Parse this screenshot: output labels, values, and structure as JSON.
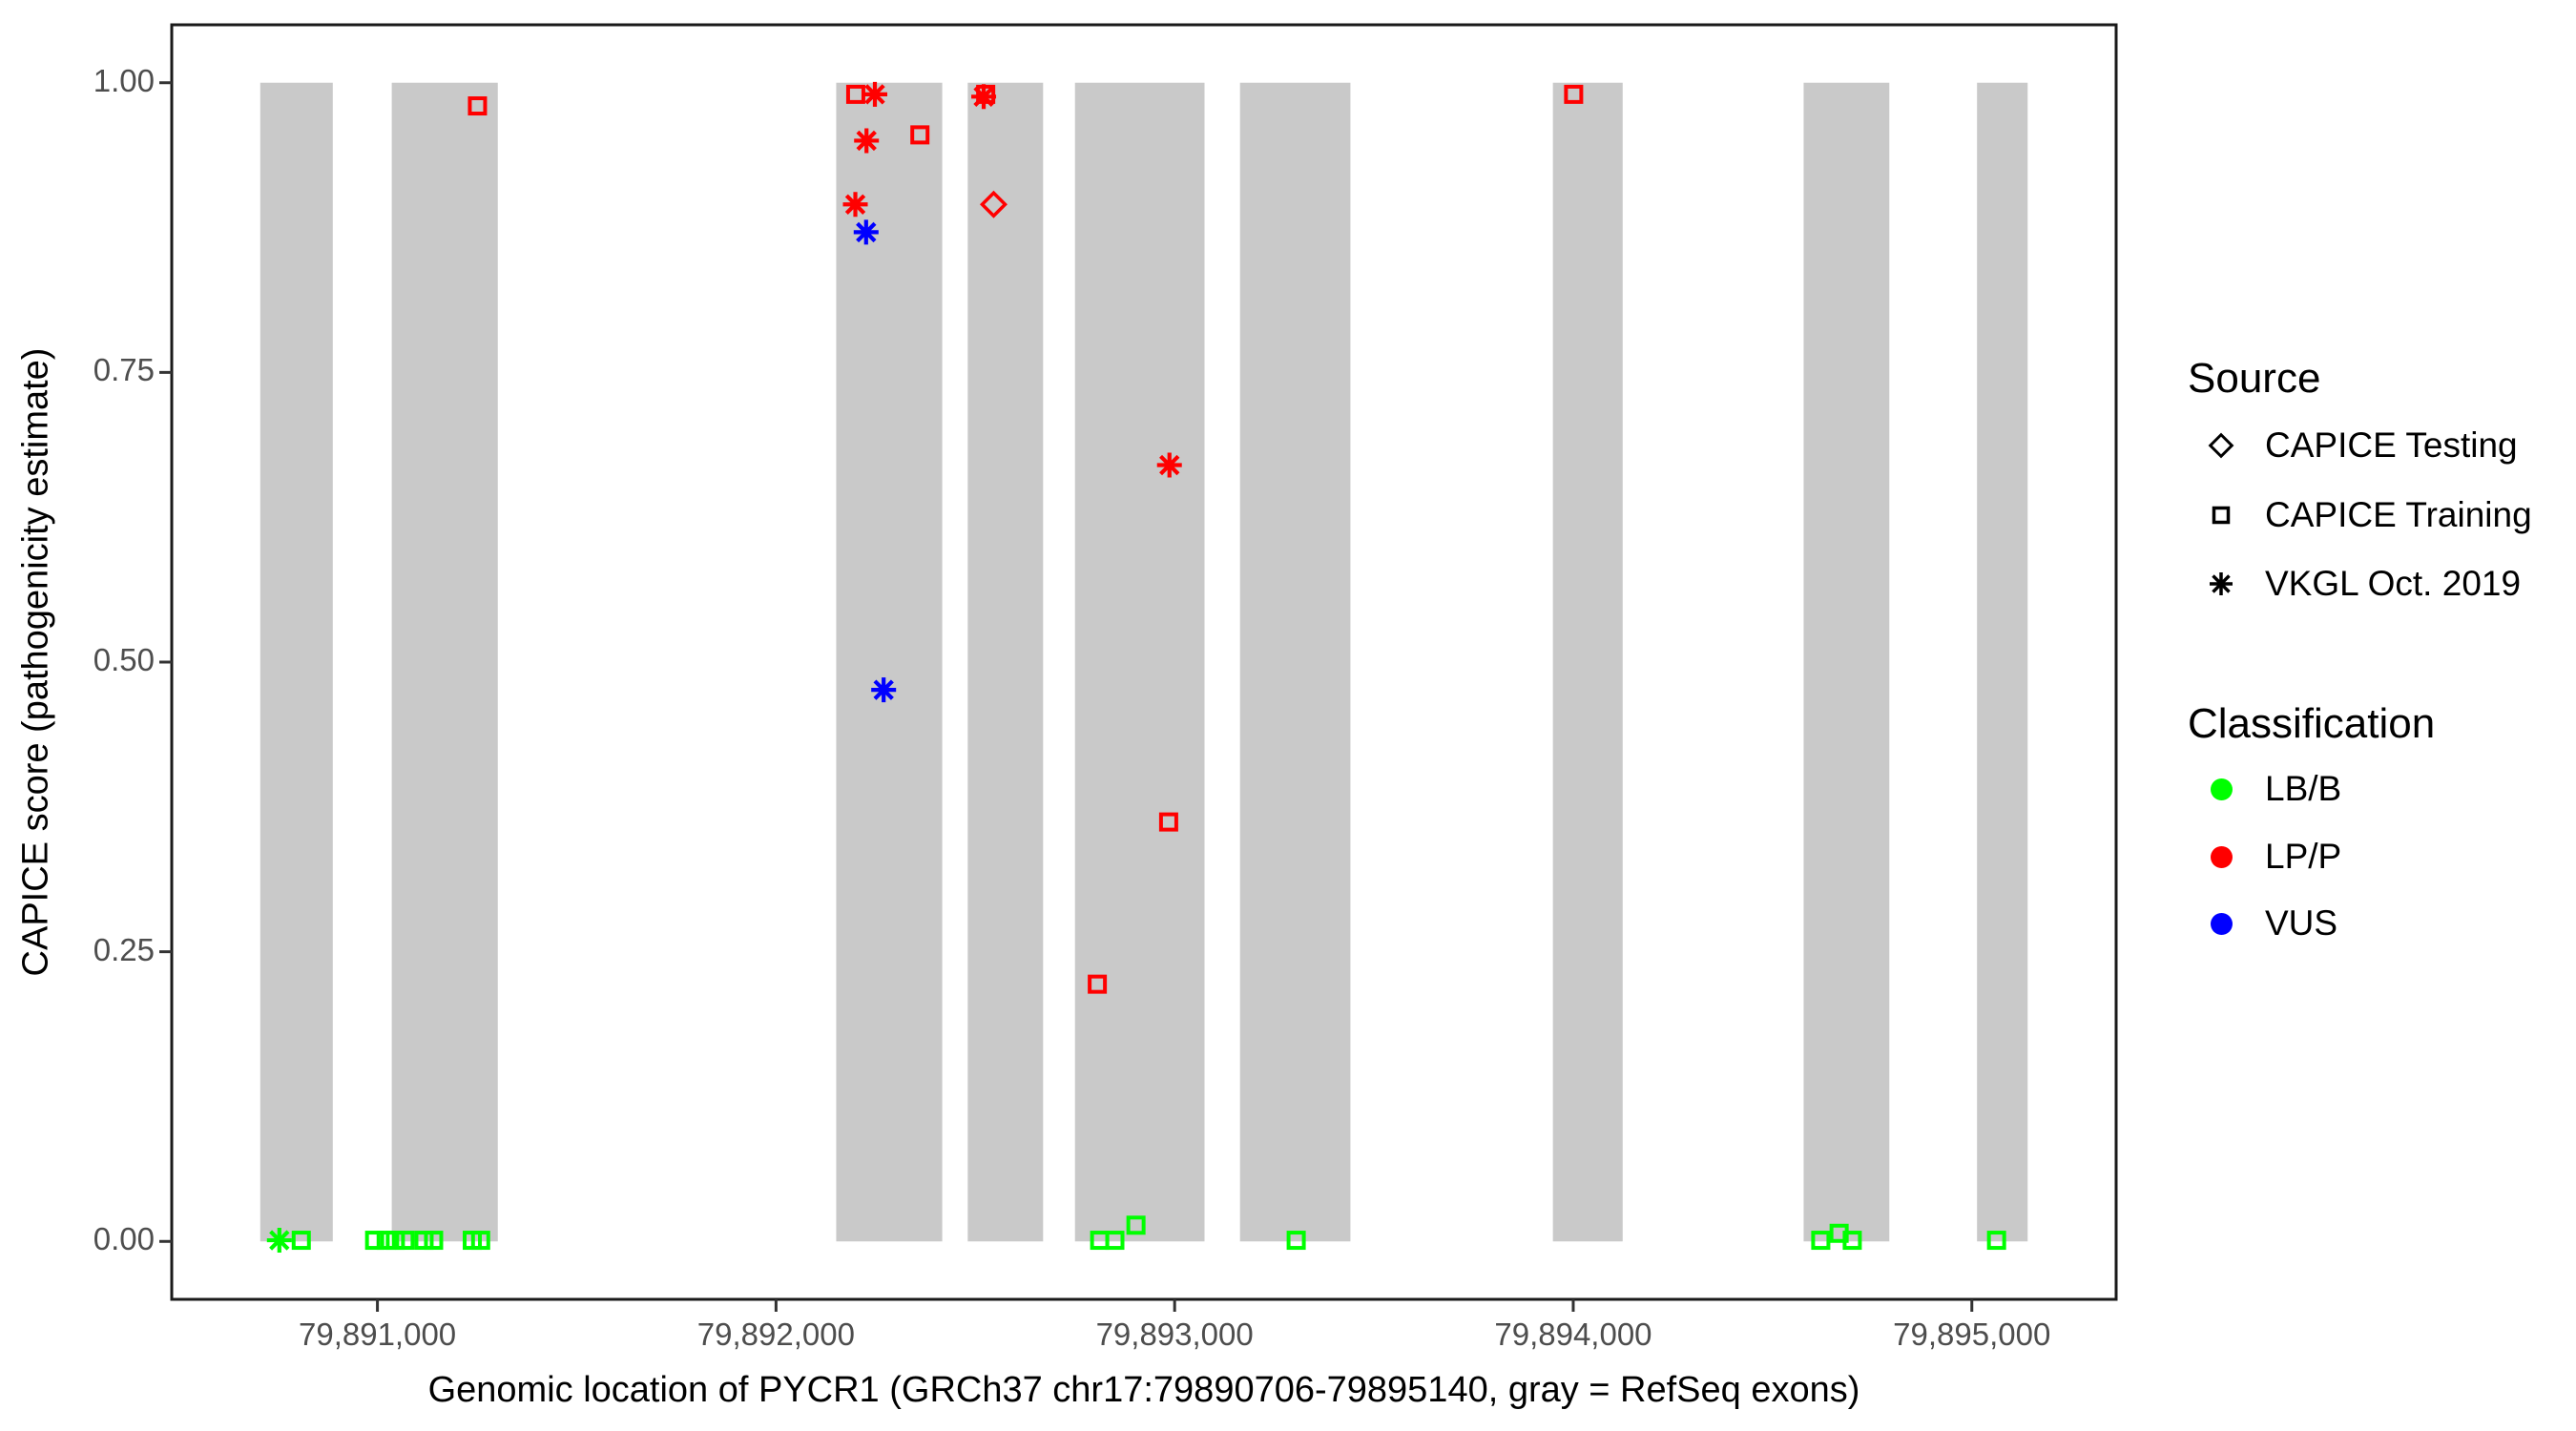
{
  "figure": {
    "background": "#FFFFFF",
    "panel_border_color": "#1A1A1A",
    "exon_color": "#C9C9C9",
    "tick_color": "#333333",
    "axis_text_color": "#4D4D4D"
  },
  "x_axis": {
    "title": "Genomic location of PYCR1 (GRCh37 chr17:79890706-79895140, gray = RefSeq exons)",
    "range": [
      79890484,
      79895362
    ],
    "ticks": [
      {
        "label": "79,891,000",
        "value": 79891000
      },
      {
        "label": "79,892,000",
        "value": 79892000
      },
      {
        "label": "79,893,000",
        "value": 79893000
      },
      {
        "label": "79,894,000",
        "value": 79894000
      },
      {
        "label": "79,895,000",
        "value": 79895000
      }
    ]
  },
  "y_axis": {
    "title": "CAPICE score (pathogenicity estimate)",
    "range": [
      -0.05,
      1.05
    ],
    "ticks": [
      {
        "label": "0.00",
        "value": 0.0
      },
      {
        "label": "0.25",
        "value": 0.25
      },
      {
        "label": "0.50",
        "value": 0.5
      },
      {
        "label": "0.75",
        "value": 0.75
      },
      {
        "label": "1.00",
        "value": 1.0
      }
    ]
  },
  "legend": {
    "source": {
      "title": "Source",
      "items": [
        {
          "label": "CAPICE Testing",
          "shape": "diamond"
        },
        {
          "label": "CAPICE Training",
          "shape": "square"
        },
        {
          "label": "VKGL Oct. 2019",
          "shape": "asterisk"
        }
      ]
    },
    "classification": {
      "title": "Classification",
      "items": [
        {
          "label": "LB/B",
          "color": "#00FF00"
        },
        {
          "label": "LP/P",
          "color": "#FF0000"
        },
        {
          "label": "VUS",
          "color": "#0000FF"
        }
      ]
    }
  },
  "chart_data": {
    "type": "scatter",
    "title": "",
    "xlabel": "Genomic location of PYCR1 (GRCh37 chr17:79890706-79895140, gray = RefSeq exons)",
    "ylabel": "CAPICE score (pathogenicity estimate)",
    "xlim": [
      79890484,
      79895362
    ],
    "ylim": [
      -0.05,
      1.05
    ],
    "grid": false,
    "legend_position": "right",
    "exon_note": "gray bars are RefSeq exons spanning score 0 to 1",
    "exons": [
      {
        "start": 79890706,
        "end": 79890888
      },
      {
        "start": 79891036,
        "end": 79891302
      },
      {
        "start": 79892151,
        "end": 79892417
      },
      {
        "start": 79892481,
        "end": 79892670
      },
      {
        "start": 79892750,
        "end": 79893075
      },
      {
        "start": 79893164,
        "end": 79893441
      },
      {
        "start": 79893949,
        "end": 79894124
      },
      {
        "start": 79894578,
        "end": 79894793
      },
      {
        "start": 79895013,
        "end": 79895140
      }
    ],
    "shape_map": {
      "CAPICE Testing": "diamond",
      "CAPICE Training": "square",
      "VKGL Oct. 2019": "asterisk"
    },
    "color_map": {
      "LB/B": "#00FF00",
      "LP/P": "#FF0000",
      "VUS": "#0000FF"
    },
    "points": [
      {
        "pos": 79890754,
        "score": 0.001,
        "source": "VKGL Oct. 2019",
        "classification": "LB/B"
      },
      {
        "pos": 79890809,
        "score": 0.001,
        "source": "CAPICE Training",
        "classification": "LB/B"
      },
      {
        "pos": 79890993,
        "score": 0.001,
        "source": "CAPICE Training",
        "classification": "LB/B"
      },
      {
        "pos": 79891022,
        "score": 0.001,
        "source": "CAPICE Training",
        "classification": "LB/B"
      },
      {
        "pos": 79891045,
        "score": 0.001,
        "source": "CAPICE Training",
        "classification": "LB/B"
      },
      {
        "pos": 79891069,
        "score": 0.001,
        "source": "CAPICE Training",
        "classification": "LB/B"
      },
      {
        "pos": 79891117,
        "score": 0.001,
        "source": "CAPICE Training",
        "classification": "LB/B"
      },
      {
        "pos": 79891141,
        "score": 0.001,
        "source": "CAPICE Training",
        "classification": "LB/B"
      },
      {
        "pos": 79891238,
        "score": 0.001,
        "source": "CAPICE Training",
        "classification": "LB/B"
      },
      {
        "pos": 79891259,
        "score": 0.001,
        "source": "CAPICE Training",
        "classification": "LB/B"
      },
      {
        "pos": 79891251,
        "score": 0.98,
        "source": "CAPICE Training",
        "classification": "LP/P"
      },
      {
        "pos": 79892200,
        "score": 0.99,
        "source": "CAPICE Training",
        "classification": "LP/P"
      },
      {
        "pos": 79892248,
        "score": 0.99,
        "source": "VKGL Oct. 2019",
        "classification": "LP/P"
      },
      {
        "pos": 79892227,
        "score": 0.95,
        "source": "VKGL Oct. 2019",
        "classification": "LP/P"
      },
      {
        "pos": 79892361,
        "score": 0.955,
        "source": "CAPICE Training",
        "classification": "LP/P"
      },
      {
        "pos": 79892199,
        "score": 0.895,
        "source": "VKGL Oct. 2019",
        "classification": "LP/P"
      },
      {
        "pos": 79892226,
        "score": 0.871,
        "source": "VKGL Oct. 2019",
        "classification": "VUS"
      },
      {
        "pos": 79892270,
        "score": 0.476,
        "source": "VKGL Oct. 2019",
        "classification": "VUS"
      },
      {
        "pos": 79892526,
        "score": 0.99,
        "source": "CAPICE Training",
        "classification": "LP/P"
      },
      {
        "pos": 79892521,
        "score": 0.988,
        "source": "VKGL Oct. 2019",
        "classification": "LP/P"
      },
      {
        "pos": 79892546,
        "score": 0.895,
        "source": "CAPICE Testing",
        "classification": "LP/P"
      },
      {
        "pos": 79892806,
        "score": 0.222,
        "source": "CAPICE Training",
        "classification": "LP/P"
      },
      {
        "pos": 79892812,
        "score": 0.001,
        "source": "CAPICE Training",
        "classification": "LB/B"
      },
      {
        "pos": 79892850,
        "score": 0.001,
        "source": "CAPICE Training",
        "classification": "LB/B"
      },
      {
        "pos": 79892903,
        "score": 0.014,
        "source": "CAPICE Training",
        "classification": "LB/B"
      },
      {
        "pos": 79892987,
        "score": 0.67,
        "source": "VKGL Oct. 2019",
        "classification": "LP/P"
      },
      {
        "pos": 79892985,
        "score": 0.362,
        "source": "CAPICE Training",
        "classification": "LP/P"
      },
      {
        "pos": 79893305,
        "score": 0.001,
        "source": "CAPICE Training",
        "classification": "LB/B"
      },
      {
        "pos": 79894001,
        "score": 0.99,
        "source": "CAPICE Training",
        "classification": "LP/P"
      },
      {
        "pos": 79894621,
        "score": 0.001,
        "source": "CAPICE Training",
        "classification": "LB/B"
      },
      {
        "pos": 79894667,
        "score": 0.007,
        "source": "CAPICE Training",
        "classification": "LB/B"
      },
      {
        "pos": 79894700,
        "score": 0.001,
        "source": "CAPICE Training",
        "classification": "LB/B"
      },
      {
        "pos": 79895062,
        "score": 0.001,
        "source": "CAPICE Training",
        "classification": "LB/B"
      }
    ]
  }
}
